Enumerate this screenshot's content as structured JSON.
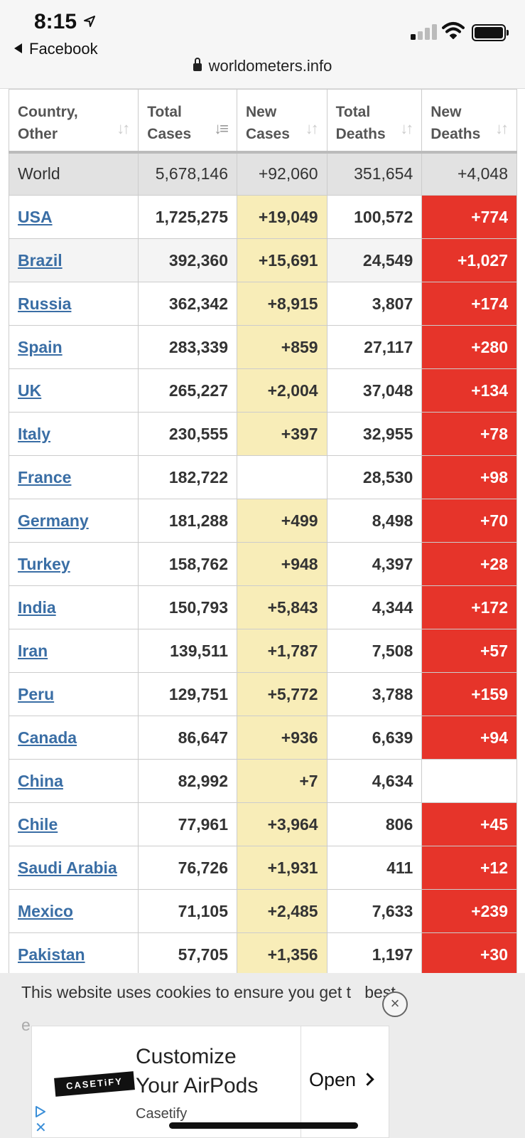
{
  "status_bar": {
    "time": "8:15",
    "back_label": "Facebook",
    "url": "worldometers.info",
    "icons": [
      "location-arrow-icon",
      "cellular-signal-icon",
      "wifi-icon",
      "battery-icon",
      "lock-icon"
    ]
  },
  "table": {
    "headers": [
      {
        "line1": "Country,",
        "line2": "Other"
      },
      {
        "line1": "Total",
        "line2": "Cases"
      },
      {
        "line1": "New",
        "line2": "Cases"
      },
      {
        "line1": "Total",
        "line2": "Deaths"
      },
      {
        "line1": "New",
        "line2": "Deaths"
      }
    ],
    "world": {
      "country": "World",
      "total_cases": "5,678,146",
      "new_cases": "+92,060",
      "total_deaths": "351,654",
      "new_deaths": "+4,048"
    },
    "rows": [
      {
        "country": "USA",
        "total_cases": "1,725,275",
        "new_cases": "+19,049",
        "total_deaths": "100,572",
        "new_deaths": "+774"
      },
      {
        "country": "Brazil",
        "total_cases": "392,360",
        "new_cases": "+15,691",
        "total_deaths": "24,549",
        "new_deaths": "+1,027"
      },
      {
        "country": "Russia",
        "total_cases": "362,342",
        "new_cases": "+8,915",
        "total_deaths": "3,807",
        "new_deaths": "+174"
      },
      {
        "country": "Spain",
        "total_cases": "283,339",
        "new_cases": "+859",
        "total_deaths": "27,117",
        "new_deaths": "+280"
      },
      {
        "country": "UK",
        "total_cases": "265,227",
        "new_cases": "+2,004",
        "total_deaths": "37,048",
        "new_deaths": "+134"
      },
      {
        "country": "Italy",
        "total_cases": "230,555",
        "new_cases": "+397",
        "total_deaths": "32,955",
        "new_deaths": "+78"
      },
      {
        "country": "France",
        "total_cases": "182,722",
        "new_cases": "",
        "total_deaths": "28,530",
        "new_deaths": "+98"
      },
      {
        "country": "Germany",
        "total_cases": "181,288",
        "new_cases": "+499",
        "total_deaths": "8,498",
        "new_deaths": "+70"
      },
      {
        "country": "Turkey",
        "total_cases": "158,762",
        "new_cases": "+948",
        "total_deaths": "4,397",
        "new_deaths": "+28"
      },
      {
        "country": "India",
        "total_cases": "150,793",
        "new_cases": "+5,843",
        "total_deaths": "4,344",
        "new_deaths": "+172"
      },
      {
        "country": "Iran",
        "total_cases": "139,511",
        "new_cases": "+1,787",
        "total_deaths": "7,508",
        "new_deaths": "+57"
      },
      {
        "country": "Peru",
        "total_cases": "129,751",
        "new_cases": "+5,772",
        "total_deaths": "3,788",
        "new_deaths": "+159"
      },
      {
        "country": "Canada",
        "total_cases": "86,647",
        "new_cases": "+936",
        "total_deaths": "6,639",
        "new_deaths": "+94"
      },
      {
        "country": "China",
        "total_cases": "82,992",
        "new_cases": "+7",
        "total_deaths": "4,634",
        "new_deaths": ""
      },
      {
        "country": "Chile",
        "total_cases": "77,961",
        "new_cases": "+3,964",
        "total_deaths": "806",
        "new_deaths": "+45"
      },
      {
        "country": "Saudi Arabia",
        "total_cases": "76,726",
        "new_cases": "+1,931",
        "total_deaths": "411",
        "new_deaths": "+12"
      },
      {
        "country": "Mexico",
        "total_cases": "71,105",
        "new_cases": "+2,485",
        "total_deaths": "7,633",
        "new_deaths": "+239"
      },
      {
        "country": "Pakistan",
        "total_cases": "57,705",
        "new_cases": "+1,356",
        "total_deaths": "1,197",
        "new_deaths": "+30"
      }
    ],
    "colors": {
      "new_cases_bg": "#f8edb8",
      "new_deaths_bg": "#e6342a",
      "link": "#3a6ea5",
      "world_bg": "#e2e2e2"
    }
  },
  "cookie_bar": {
    "text_before": "This website uses cookies to ensure you get t",
    "text_after": "best",
    "text_fade": "e",
    "close_symbol": "×"
  },
  "ad": {
    "logo_text": "CASETiFY",
    "title_line1": "Customize",
    "title_line2": "Your AirPods",
    "brand": "Casetify",
    "cta": "Open",
    "close_symbol": "✕"
  }
}
